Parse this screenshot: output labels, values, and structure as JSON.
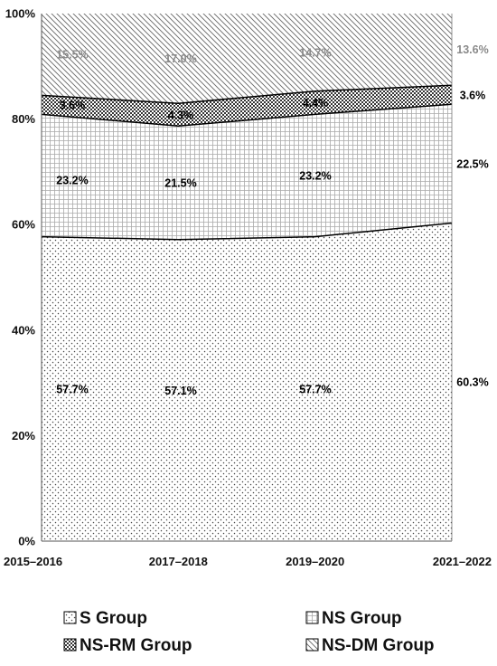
{
  "chart_data": {
    "type": "area",
    "stacked": true,
    "percent": true,
    "categories": [
      "2015–2016",
      "2017–2018",
      "2019–2020",
      "2021–2022"
    ],
    "ylim": [
      0,
      100
    ],
    "y_ticks": [
      "0%",
      "20%",
      "40%",
      "60%",
      "80%",
      "100%"
    ],
    "series": [
      {
        "name": "S Group",
        "values": [
          57.7,
          57.1,
          57.7,
          60.3
        ],
        "labels": [
          "57.7%",
          "57.1%",
          "57.7%",
          "60.3%"
        ],
        "pattern": "dots",
        "label_color": "#000000"
      },
      {
        "name": "NS Group",
        "values": [
          23.2,
          21.5,
          23.2,
          22.5
        ],
        "labels": [
          "23.2%",
          "21.5%",
          "23.2%",
          "22.5%"
        ],
        "pattern": "grid",
        "label_color": "#000000"
      },
      {
        "name": "NS-RM Group",
        "values": [
          3.6,
          4.3,
          4.4,
          3.6
        ],
        "labels": [
          "3.6%",
          "4.3%",
          "4.4%",
          "3.6%"
        ],
        "pattern": "checker",
        "label_color": "#000000"
      },
      {
        "name": "NS-DM Group",
        "values": [
          15.5,
          17.0,
          14.7,
          13.6
        ],
        "labels": [
          "15.5%",
          "17.0%",
          "14.7%",
          "13.6%"
        ],
        "pattern": "diagonal",
        "label_color": "#8a8a8a"
      }
    ],
    "grid": false,
    "legend_position": "bottom"
  }
}
